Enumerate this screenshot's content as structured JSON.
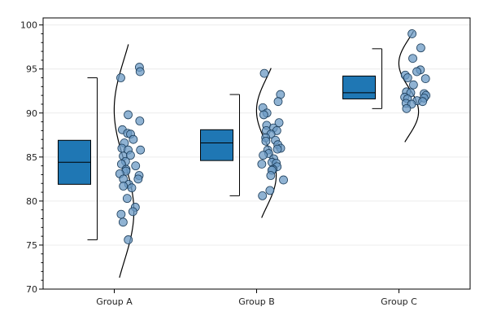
{
  "chart_data": {
    "type": "box",
    "groups": [
      "Group A",
      "Group B",
      "Group C"
    ],
    "ylim": [
      70,
      100.8
    ],
    "yticks": [
      70,
      75,
      80,
      85,
      90,
      95,
      100
    ],
    "grid": true,
    "box_color": "#1f77b4",
    "point_color": "#6b9ac4",
    "box_stats": [
      {
        "name": "Group A",
        "whisker_low": 75.6,
        "q1": 81.9,
        "median": 84.4,
        "q3": 86.9,
        "whisker_high": 94.0
      },
      {
        "name": "Group B",
        "whisker_low": 80.6,
        "q1": 84.6,
        "median": 86.6,
        "q3": 88.1,
        "whisker_high": 92.1
      },
      {
        "name": "Group C",
        "whisker_low": 90.5,
        "q1": 91.6,
        "median": 92.3,
        "q3": 94.2,
        "whisker_high": 97.3
      }
    ],
    "points": [
      {
        "group": "Group A",
        "values": [
          95.2,
          94.7,
          94.0,
          89.8,
          89.1,
          88.1,
          87.7,
          87.6,
          87.0,
          86.6,
          86.0,
          85.8,
          85.8,
          85.1,
          85.2,
          84.5,
          84.2,
          84.0,
          83.6,
          83.4,
          83.1,
          82.9,
          82.5,
          82.5,
          81.9,
          81.7,
          81.5,
          80.3,
          79.3,
          78.8,
          78.5,
          77.6,
          75.6
        ]
      },
      {
        "group": "Group B",
        "values": [
          94.5,
          92.1,
          91.3,
          90.6,
          90.0,
          89.8,
          88.9,
          88.6,
          88.3,
          88.0,
          88.0,
          87.6,
          87.2,
          86.9,
          86.8,
          86.4,
          86.0,
          85.8,
          85.9,
          85.4,
          85.2,
          84.8,
          84.4,
          84.2,
          84.3,
          83.9,
          83.6,
          83.5,
          82.9,
          82.4,
          81.2,
          80.6
        ]
      },
      {
        "group": "Group C",
        "values": [
          99.0,
          97.4,
          96.2,
          94.9,
          94.7,
          94.3,
          94.0,
          93.9,
          93.2,
          92.4,
          92.3,
          92.2,
          92.0,
          91.8,
          91.7,
          91.6,
          91.4,
          91.3,
          91.1,
          91.0,
          90.5
        ]
      }
    ],
    "density": [
      {
        "group": "Group A",
        "mean": 84.6,
        "sd": 4.4,
        "ymin": 71.3,
        "ymax": 97.8
      },
      {
        "group": "Group B",
        "mean": 86.6,
        "sd": 2.8,
        "ymin": 78.1,
        "ymax": 95.1
      },
      {
        "group": "Group C",
        "mean": 92.9,
        "sd": 2.1,
        "ymin": 86.7,
        "ymax": 99.3
      }
    ]
  }
}
